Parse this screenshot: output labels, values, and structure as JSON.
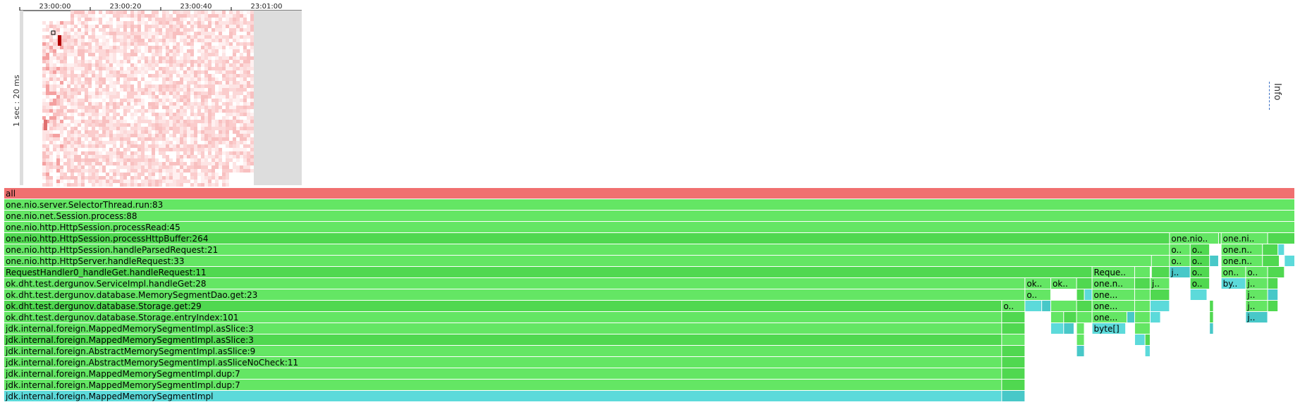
{
  "info_tab": {
    "label": "Info"
  },
  "chart_data": [
    {
      "type": "heatmap",
      "x_ticks": [
        "23:00:00",
        "23:00:20",
        "23:00:40",
        "23:01:00"
      ],
      "ylabel": "1 sec : 20 ms",
      "colors": {
        "low": "#fde0e0",
        "high": "#b00000",
        "empty": "#ffffff",
        "inactive": "#dddddd"
      },
      "selected_cell": {
        "column": 3,
        "row": 7
      }
    },
    {
      "type": "flamegraph",
      "total_width": 1000,
      "colors": {
        "root": "#f07070",
        "java": "#64e664",
        "java_alt": "#50d850",
        "inlined": "#5cdada",
        "inlined_alt": "#48c8c8"
      },
      "frames": [
        {
          "label": "all",
          "depth": 0,
          "start": 0,
          "width": 1000,
          "kind": "root"
        },
        {
          "label": "one.nio.server.SelectorThread.run:83",
          "depth": 1,
          "start": 0,
          "width": 1000,
          "kind": "java"
        },
        {
          "label": "one.nio.net.Session.process:88",
          "depth": 2,
          "start": 0,
          "width": 1000,
          "kind": "java"
        },
        {
          "label": "one.nio.http.HttpSession.processRead:45",
          "depth": 3,
          "start": 0,
          "width": 1000,
          "kind": "java"
        },
        {
          "label": "one.nio.http.HttpSession.processHttpBuffer:264",
          "depth": 4,
          "start": 0,
          "width": 903,
          "kind": "java_alt"
        },
        {
          "label": "one.nio...",
          "depth": 4,
          "start": 903,
          "width": 38,
          "kind": "java"
        },
        {
          "label": "",
          "depth": 4,
          "start": 941,
          "width": 2,
          "kind": "java_alt"
        },
        {
          "label": "one.nio..",
          "depth": 4,
          "start": 943,
          "width": 36,
          "kind": "java"
        },
        {
          "label": "",
          "depth": 4,
          "start": 979,
          "width": 21,
          "kind": "java_alt"
        },
        {
          "label": "one.nio.http.HttpSession.handleParsedRequest:21",
          "depth": 5,
          "start": 0,
          "width": 903,
          "kind": "java"
        },
        {
          "label": "on..",
          "depth": 5,
          "start": 903,
          "width": 16,
          "kind": "java"
        },
        {
          "label": "o..",
          "depth": 5,
          "start": 919,
          "width": 15,
          "kind": "java_alt"
        },
        {
          "label": "one.nio..",
          "depth": 5,
          "start": 943,
          "width": 32,
          "kind": "java"
        },
        {
          "label": "",
          "depth": 5,
          "start": 975,
          "width": 12,
          "kind": "java_alt"
        },
        {
          "label": "",
          "depth": 5,
          "start": 987,
          "width": 5,
          "kind": "inlined"
        },
        {
          "label": "one.nio.http.HttpServer.handleRequest:33",
          "depth": 6,
          "start": 0,
          "width": 889,
          "kind": "java"
        },
        {
          "label": "o..",
          "depth": 6,
          "start": 889,
          "width": 14,
          "kind": "java"
        },
        {
          "label": "on..",
          "depth": 6,
          "start": 903,
          "width": 16,
          "kind": "java"
        },
        {
          "label": "o..",
          "depth": 6,
          "start": 919,
          "width": 15,
          "kind": "java_alt"
        },
        {
          "label": "",
          "depth": 6,
          "start": 934,
          "width": 7,
          "kind": "inlined_alt"
        },
        {
          "label": "one.nio..",
          "depth": 6,
          "start": 943,
          "width": 32,
          "kind": "java"
        },
        {
          "label": "",
          "depth": 6,
          "start": 975,
          "width": 13,
          "kind": "java_alt"
        },
        {
          "label": "",
          "depth": 6,
          "start": 992,
          "width": 8,
          "kind": "inlined"
        },
        {
          "label": "RequestHandler0_handleGet.handleRequest:11",
          "depth": 7,
          "start": 0,
          "width": 843,
          "kind": "java_alt"
        },
        {
          "label": "Reques..",
          "depth": 7,
          "start": 843,
          "width": 33,
          "kind": "java"
        },
        {
          "label": "R..",
          "depth": 7,
          "start": 876,
          "width": 12,
          "kind": "java"
        },
        {
          "label": "o..",
          "depth": 7,
          "start": 889,
          "width": 14,
          "kind": "java_alt"
        },
        {
          "label": "ja..",
          "depth": 7,
          "start": 903,
          "width": 16,
          "kind": "inlined_alt"
        },
        {
          "label": "o..",
          "depth": 7,
          "start": 919,
          "width": 15,
          "kind": "java_alt"
        },
        {
          "label": "one..",
          "depth": 7,
          "start": 943,
          "width": 19,
          "kind": "java"
        },
        {
          "label": "on..",
          "depth": 7,
          "start": 962,
          "width": 17,
          "kind": "java"
        },
        {
          "label": "",
          "depth": 7,
          "start": 979,
          "width": 13,
          "kind": "java_alt"
        },
        {
          "label": "ok.dht.test.dergunov.ServiceImpl.handleGet:28",
          "depth": 8,
          "start": 0,
          "width": 791,
          "kind": "java"
        },
        {
          "label": "ok...",
          "depth": 8,
          "start": 791,
          "width": 20,
          "kind": "java"
        },
        {
          "label": "ok..",
          "depth": 8,
          "start": 811,
          "width": 20,
          "kind": "java"
        },
        {
          "label": "",
          "depth": 8,
          "start": 831,
          "width": 12,
          "kind": "java_alt"
        },
        {
          "label": "one.ni..",
          "depth": 8,
          "start": 843,
          "width": 33,
          "kind": "java"
        },
        {
          "label": "o..",
          "depth": 8,
          "start": 876,
          "width": 12,
          "kind": "java_alt"
        },
        {
          "label": "j..",
          "depth": 8,
          "start": 888,
          "width": 15,
          "kind": "java"
        },
        {
          "label": "o..",
          "depth": 8,
          "start": 919,
          "width": 15,
          "kind": "java_alt"
        },
        {
          "label": "byt..",
          "depth": 8,
          "start": 943,
          "width": 19,
          "kind": "inlined"
        },
        {
          "label": "ja..",
          "depth": 8,
          "start": 962,
          "width": 17,
          "kind": "java"
        },
        {
          "label": "",
          "depth": 8,
          "start": 979,
          "width": 8,
          "kind": "java_alt"
        },
        {
          "label": "ok.dht.test.dergunov.database.MemorySegmentDao.get:23",
          "depth": 9,
          "start": 0,
          "width": 791,
          "kind": "java"
        },
        {
          "label": "o..",
          "depth": 9,
          "start": 791,
          "width": 20,
          "kind": "java"
        },
        {
          "label": "",
          "depth": 9,
          "start": 831,
          "width": 6,
          "kind": "java_alt"
        },
        {
          "label": "",
          "depth": 9,
          "start": 837,
          "width": 6,
          "kind": "inlined"
        },
        {
          "label": "one...",
          "depth": 9,
          "start": 843,
          "width": 33,
          "kind": "java"
        },
        {
          "label": "o..",
          "depth": 9,
          "start": 876,
          "width": 12,
          "kind": "java"
        },
        {
          "label": "",
          "depth": 9,
          "start": 888,
          "width": 15,
          "kind": "java_alt"
        },
        {
          "label": "b..",
          "depth": 9,
          "start": 919,
          "width": 13,
          "kind": "inlined"
        },
        {
          "label": "ja..",
          "depth": 9,
          "start": 962,
          "width": 17,
          "kind": "java"
        },
        {
          "label": "",
          "depth": 9,
          "start": 979,
          "width": 8,
          "kind": "inlined_alt"
        },
        {
          "label": "ok.dht.test.dergunov.database.Storage.get:29",
          "depth": 10,
          "start": 0,
          "width": 773,
          "kind": "java_alt"
        },
        {
          "label": "ok..",
          "depth": 10,
          "start": 773,
          "width": 18,
          "kind": "java"
        },
        {
          "label": "",
          "depth": 10,
          "start": 791,
          "width": 13,
          "kind": "inlined"
        },
        {
          "label": "",
          "depth": 10,
          "start": 804,
          "width": 7,
          "kind": "inlined_alt"
        },
        {
          "label": "",
          "depth": 10,
          "start": 811,
          "width": 20,
          "kind": "java"
        },
        {
          "label": "",
          "depth": 10,
          "start": 831,
          "width": 12,
          "kind": "java_alt"
        },
        {
          "label": "one...",
          "depth": 10,
          "start": 843,
          "width": 33,
          "kind": "java"
        },
        {
          "label": "j..",
          "depth": 10,
          "start": 876,
          "width": 12,
          "kind": "java"
        },
        {
          "label": "",
          "depth": 10,
          "start": 888,
          "width": 15,
          "kind": "inlined"
        },
        {
          "label": "",
          "depth": 10,
          "start": 934,
          "width": 3,
          "kind": "java_alt"
        },
        {
          "label": "ja..",
          "depth": 10,
          "start": 962,
          "width": 17,
          "kind": "java"
        },
        {
          "label": "",
          "depth": 10,
          "start": 979,
          "width": 8,
          "kind": "java_alt"
        },
        {
          "label": "ok.dht.test.dergunov.database.Storage.entryIndex:101",
          "depth": 11,
          "start": 0,
          "width": 773,
          "kind": "java"
        },
        {
          "label": "",
          "depth": 11,
          "start": 773,
          "width": 18,
          "kind": "java_alt"
        },
        {
          "label": "",
          "depth": 11,
          "start": 811,
          "width": 10,
          "kind": "java"
        },
        {
          "label": "",
          "depth": 11,
          "start": 821,
          "width": 10,
          "kind": "java_alt"
        },
        {
          "label": "",
          "depth": 11,
          "start": 831,
          "width": 12,
          "kind": "java"
        },
        {
          "label": "one...",
          "depth": 11,
          "start": 843,
          "width": 27,
          "kind": "java"
        },
        {
          "label": "",
          "depth": 11,
          "start": 870,
          "width": 6,
          "kind": "inlined_alt"
        },
        {
          "label": "j..",
          "depth": 11,
          "start": 876,
          "width": 12,
          "kind": "java"
        },
        {
          "label": "",
          "depth": 11,
          "start": 888,
          "width": 8,
          "kind": "inlined"
        },
        {
          "label": "",
          "depth": 11,
          "start": 934,
          "width": 3,
          "kind": "java_alt"
        },
        {
          "label": "ja..",
          "depth": 11,
          "start": 962,
          "width": 17,
          "kind": "inlined_alt"
        },
        {
          "label": "jdk.internal.foreign.MappedMemorySegmentImpl.asSlice:3",
          "depth": 12,
          "start": 0,
          "width": 773,
          "kind": "java"
        },
        {
          "label": "",
          "depth": 12,
          "start": 773,
          "width": 18,
          "kind": "java_alt"
        },
        {
          "label": "",
          "depth": 12,
          "start": 811,
          "width": 10,
          "kind": "inlined"
        },
        {
          "label": "",
          "depth": 12,
          "start": 821,
          "width": 8,
          "kind": "inlined_alt"
        },
        {
          "label": "",
          "depth": 12,
          "start": 831,
          "width": 6,
          "kind": "java"
        },
        {
          "label": "byte[]",
          "depth": 12,
          "start": 843,
          "width": 26,
          "kind": "inlined"
        },
        {
          "label": "",
          "depth": 12,
          "start": 876,
          "width": 12,
          "kind": "java"
        },
        {
          "label": "",
          "depth": 12,
          "start": 934,
          "width": 3,
          "kind": "inlined_alt"
        },
        {
          "label": "jdk.internal.foreign.MappedMemorySegmentImpl.asSlice:3",
          "depth": 13,
          "start": 0,
          "width": 773,
          "kind": "java_alt"
        },
        {
          "label": "",
          "depth": 13,
          "start": 773,
          "width": 18,
          "kind": "java"
        },
        {
          "label": "",
          "depth": 13,
          "start": 831,
          "width": 6,
          "kind": "java"
        },
        {
          "label": "",
          "depth": 13,
          "start": 876,
          "width": 8,
          "kind": "inlined"
        },
        {
          "label": "",
          "depth": 13,
          "start": 884,
          "width": 4,
          "kind": "java_alt"
        },
        {
          "label": "jdk.internal.foreign.AbstractMemorySegmentImpl.asSlice:9",
          "depth": 14,
          "start": 0,
          "width": 773,
          "kind": "java"
        },
        {
          "label": "",
          "depth": 14,
          "start": 773,
          "width": 18,
          "kind": "java_alt"
        },
        {
          "label": "",
          "depth": 14,
          "start": 831,
          "width": 6,
          "kind": "inlined_alt"
        },
        {
          "label": "",
          "depth": 14,
          "start": 884,
          "width": 4,
          "kind": "inlined"
        },
        {
          "label": "jdk.internal.foreign.AbstractMemorySegmentImpl.asSliceNoCheck:11",
          "depth": 15,
          "start": 0,
          "width": 773,
          "kind": "java"
        },
        {
          "label": "",
          "depth": 15,
          "start": 773,
          "width": 18,
          "kind": "java_alt"
        },
        {
          "label": "jdk.internal.foreign.MappedMemorySegmentImpl.dup:7",
          "depth": 16,
          "start": 0,
          "width": 773,
          "kind": "java"
        },
        {
          "label": "",
          "depth": 16,
          "start": 773,
          "width": 18,
          "kind": "java_alt"
        },
        {
          "label": "jdk.internal.foreign.MappedMemorySegmentImpl.dup:7",
          "depth": 17,
          "start": 0,
          "width": 773,
          "kind": "java"
        },
        {
          "label": "",
          "depth": 17,
          "start": 773,
          "width": 18,
          "kind": "java_alt"
        },
        {
          "label": "jdk.internal.foreign.MappedMemorySegmentImpl",
          "depth": 18,
          "start": 0,
          "width": 773,
          "kind": "inlined"
        },
        {
          "label": "",
          "depth": 18,
          "start": 773,
          "width": 18,
          "kind": "inlined_alt"
        }
      ]
    }
  ]
}
